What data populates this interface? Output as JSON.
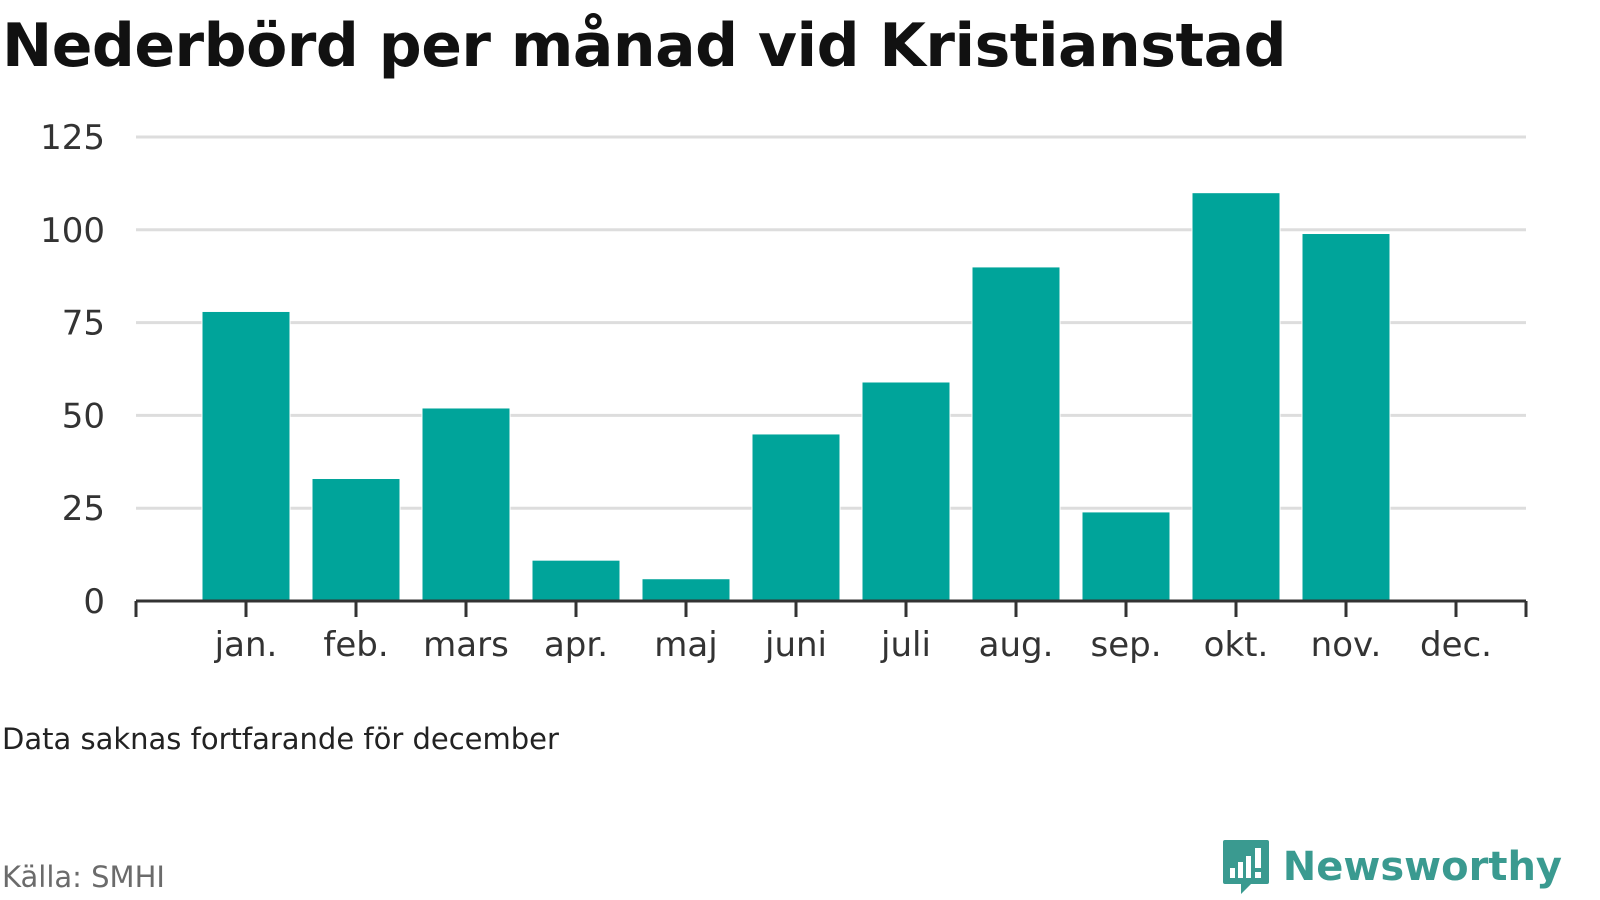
{
  "title": "Nederbörd per månad vid Kristianstad",
  "note": "Data saknas fortfarande för december",
  "source": "Källa: SMHI",
  "brand": {
    "name": "Newsworthy",
    "icon": "bar-chart-speech-bubble-icon"
  },
  "colors": {
    "bar": "#00a49a",
    "grid": "#dddddd",
    "axis": "#333333",
    "brand": "#3a9a90"
  },
  "chart_data": {
    "type": "bar",
    "title": "Nederbörd per månad vid Kristianstad",
    "xlabel": "",
    "ylabel": "",
    "categories": [
      "jan.",
      "feb.",
      "mars",
      "apr.",
      "maj",
      "juni",
      "juli",
      "aug.",
      "sep.",
      "okt.",
      "nov.",
      "dec."
    ],
    "values": [
      78,
      33,
      52,
      11,
      6,
      45,
      59,
      90,
      24,
      110,
      99,
      null
    ],
    "ylim": [
      0,
      125
    ],
    "yticks": [
      0,
      25,
      50,
      75,
      100,
      125
    ],
    "grid": true,
    "legend": "none"
  }
}
